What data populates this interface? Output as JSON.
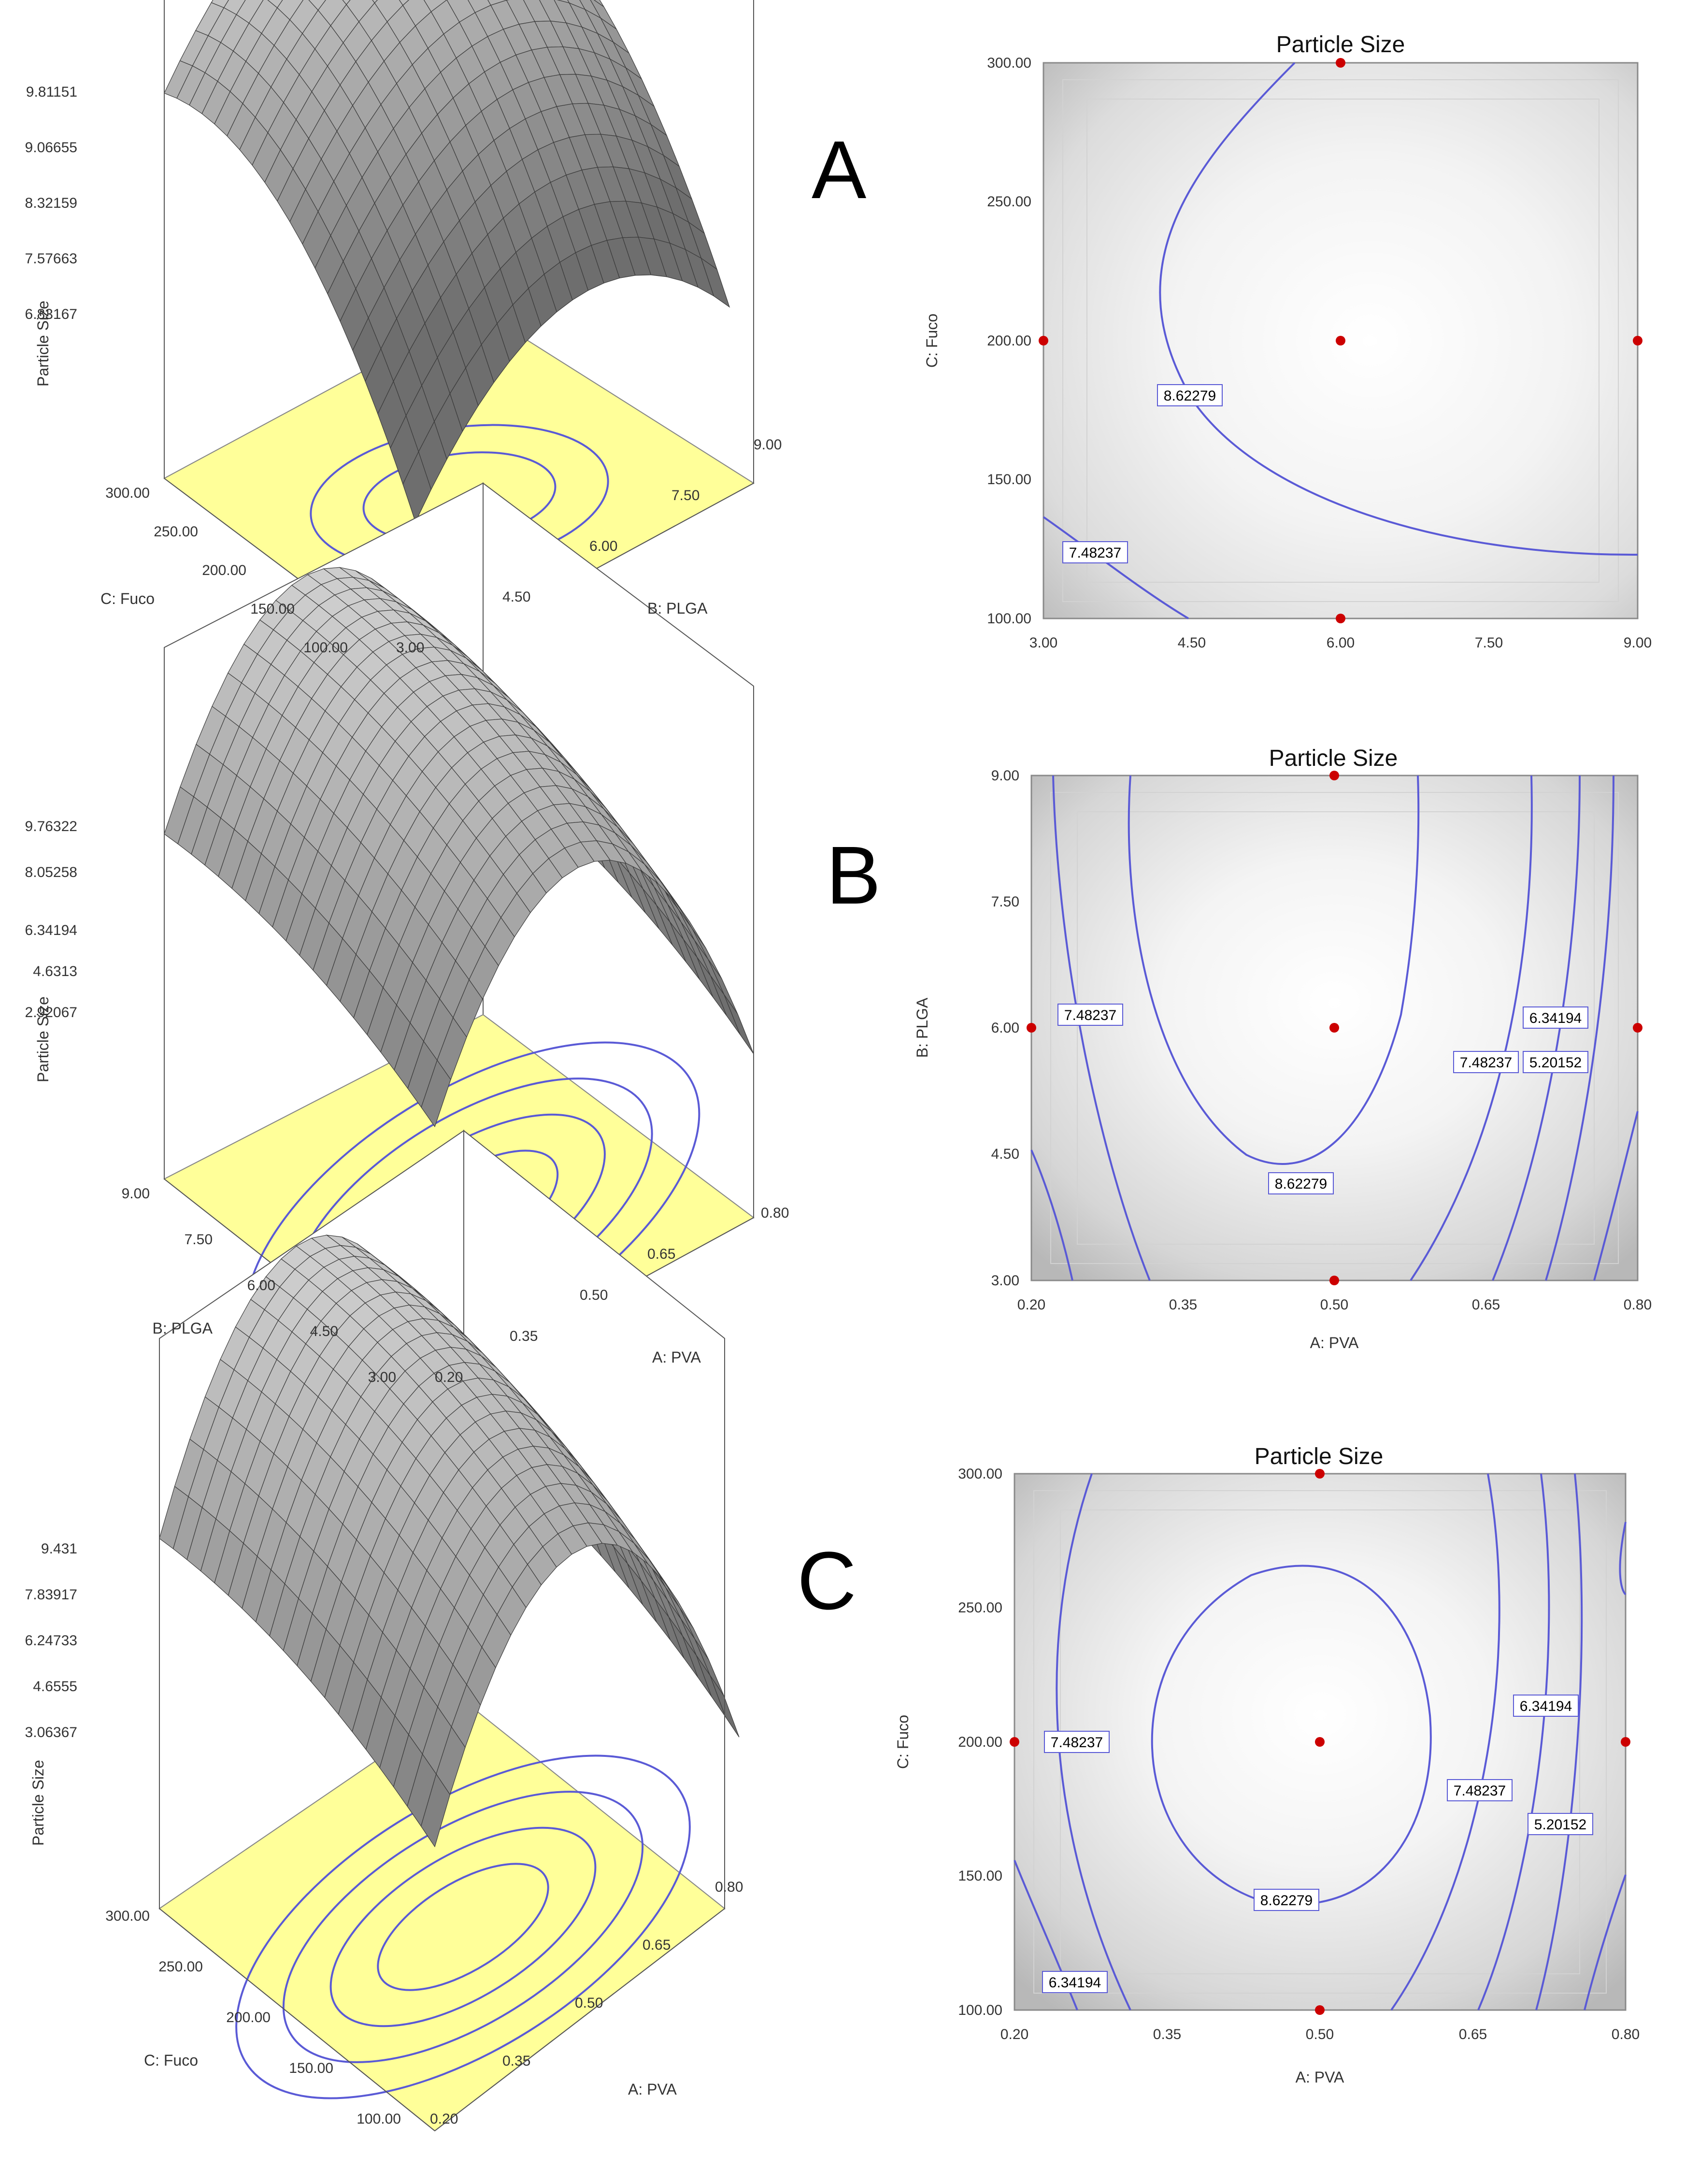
{
  "panel_letters": [
    "A",
    "B",
    "C"
  ],
  "colors": {
    "contour": "#5a5ad6",
    "floor": "#ffff99",
    "surface_light": "#efefef",
    "surface_dark": "#6e6e6e",
    "design_point": "#cc0000",
    "grid": "#555555"
  },
  "chart_data": [
    {
      "type": "surface3d",
      "panel": "A",
      "zlabel": "Particle Size",
      "xlabel": "B: PLGA",
      "ylabel": "C: Fuco",
      "x_ticks": [
        "3.00",
        "4.50",
        "6.00",
        "7.50",
        "9.00"
      ],
      "y_ticks": [
        "100.00",
        "150.00",
        "200.00",
        "250.00",
        "300.00"
      ],
      "z_ticks": [
        "6.83167",
        "7.57663",
        "8.32159",
        "9.06655",
        "9.81151"
      ],
      "xlim": [
        3,
        9
      ],
      "ylim": [
        100,
        300
      ],
      "zlim": [
        6.83167,
        9.81151
      ],
      "peak": 9.81
    },
    {
      "type": "contour",
      "panel": "A",
      "title": "Particle Size",
      "xlabel": "",
      "ylabel": "C: Fuco",
      "x_ticks": [
        "3.00",
        "4.50",
        "6.00",
        "7.50",
        "9.00"
      ],
      "y_ticks": [
        "100.00",
        "150.00",
        "200.00",
        "250.00",
        "300.00"
      ],
      "xlim": [
        3,
        9
      ],
      "ylim": [
        100,
        300
      ],
      "contour_labels": [
        "8.62279",
        "7.48237"
      ],
      "design_points": [
        [
          6,
          300
        ],
        [
          3,
          200
        ],
        [
          6,
          200
        ],
        [
          9,
          200
        ],
        [
          6,
          100
        ]
      ]
    },
    {
      "type": "surface3d",
      "panel": "B",
      "zlabel": "Particle Size",
      "xlabel": "A: PVA",
      "ylabel": "B: PLGA",
      "x_ticks": [
        "0.20",
        "0.35",
        "0.50",
        "0.65",
        "0.80"
      ],
      "y_ticks": [
        "3.00",
        "4.50",
        "6.00",
        "7.50",
        "9.00"
      ],
      "z_ticks": [
        "2.92067",
        "4.6313",
        "6.34194",
        "8.05258",
        "9.76322"
      ],
      "xlim": [
        0.2,
        0.8
      ],
      "ylim": [
        3,
        9
      ],
      "zlim": [
        2.92067,
        9.76322
      ],
      "peak": 9.76
    },
    {
      "type": "contour",
      "panel": "B",
      "title": "Particle Size",
      "xlabel": "A: PVA",
      "ylabel": "B: PLGA",
      "x_ticks": [
        "0.20",
        "0.35",
        "0.50",
        "0.65",
        "0.80"
      ],
      "y_ticks": [
        "3.00",
        "4.50",
        "6.00",
        "7.50",
        "9.00"
      ],
      "xlim": [
        0.2,
        0.8
      ],
      "ylim": [
        3,
        9
      ],
      "contour_labels": [
        "7.48237",
        "8.62279",
        "7.48237",
        "6.34194",
        "5.20152"
      ],
      "design_points": [
        [
          0.5,
          9
        ],
        [
          0.2,
          6
        ],
        [
          0.5,
          6
        ],
        [
          0.8,
          6
        ],
        [
          0.5,
          3
        ]
      ]
    },
    {
      "type": "surface3d",
      "panel": "C",
      "zlabel": "Particle Size",
      "xlabel": "A: PVA",
      "ylabel": "C: Fuco",
      "x_ticks": [
        "0.20",
        "0.35",
        "0.50",
        "0.65",
        "0.80"
      ],
      "y_ticks": [
        "100.00",
        "150.00",
        "200.00",
        "250.00",
        "300.00"
      ],
      "z_ticks": [
        "3.06367",
        "4.6555",
        "6.24733",
        "7.83917",
        "9.431"
      ],
      "xlim": [
        0.2,
        0.8
      ],
      "ylim": [
        100,
        300
      ],
      "zlim": [
        3.06367,
        9.431
      ],
      "peak": 9.43
    },
    {
      "type": "contour",
      "panel": "C",
      "title": "Particle Size",
      "xlabel": "A: PVA",
      "ylabel": "C: Fuco",
      "x_ticks": [
        "0.20",
        "0.35",
        "0.50",
        "0.65",
        "0.80"
      ],
      "y_ticks": [
        "100.00",
        "150.00",
        "200.00",
        "250.00",
        "300.00"
      ],
      "xlim": [
        0.2,
        0.8
      ],
      "ylim": [
        100,
        300
      ],
      "contour_labels": [
        "7.48237",
        "8.62279",
        "6.34194",
        "7.48237",
        "6.34194",
        "5.20152"
      ],
      "design_points": [
        [
          0.5,
          300
        ],
        [
          0.2,
          200
        ],
        [
          0.5,
          200
        ],
        [
          0.8,
          200
        ],
        [
          0.5,
          100
        ]
      ]
    }
  ]
}
